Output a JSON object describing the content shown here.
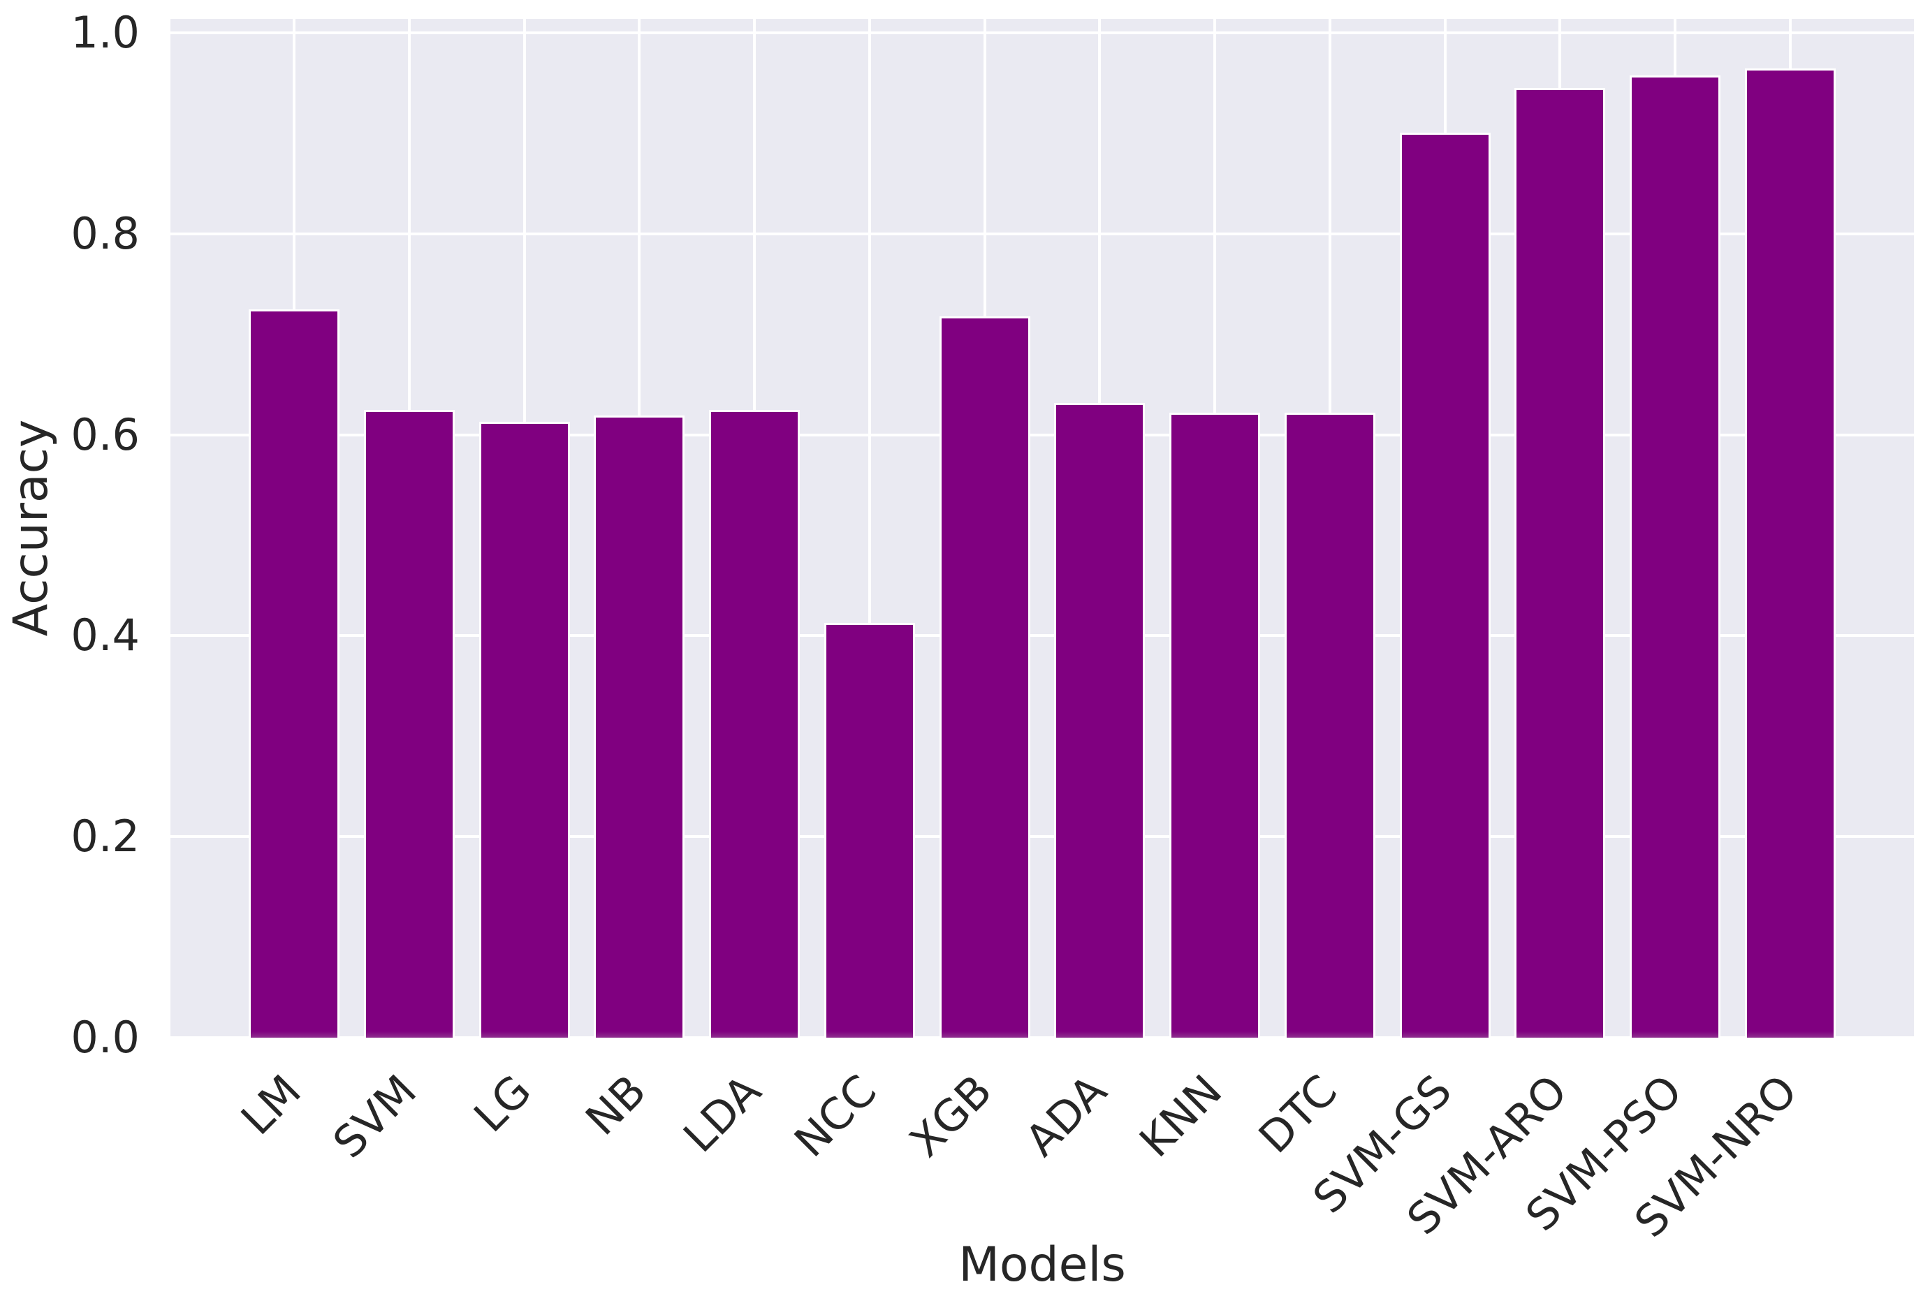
{
  "chart_data": {
    "type": "bar",
    "title": "",
    "xlabel": "Models",
    "ylabel": "Accuracy",
    "categories": [
      "LM",
      "SVM",
      "LG",
      "NB",
      "LDA",
      "NCC",
      "XGB",
      "ADA",
      "KNN",
      "DTC",
      "SVM-GS",
      "SVM-ARO",
      "SVM-PSO",
      "SVM-NRO"
    ],
    "values": [
      0.725,
      0.625,
      0.613,
      0.619,
      0.625,
      0.413,
      0.718,
      0.632,
      0.622,
      0.622,
      0.901,
      0.945,
      0.958,
      0.965
    ],
    "ylim": [
      0.0,
      1.0
    ],
    "yticks": [
      0.0,
      0.2,
      0.4,
      0.6,
      0.8,
      1.0
    ],
    "ytick_labels": [
      "0.0",
      "0.2",
      "0.4",
      "0.6",
      "0.8",
      "1.0"
    ],
    "x_tick_rotation_deg": 45,
    "grid": true,
    "legend": false,
    "bar_color": "#800080",
    "bar_base_color": "#8E2F8E",
    "style": {
      "plot_background": "#EAEAF2",
      "grid_color": "#FFFFFF",
      "text_color": "#262626",
      "figure_background": "#FFFFFF"
    }
  }
}
